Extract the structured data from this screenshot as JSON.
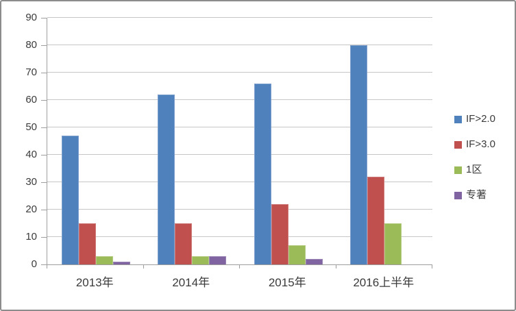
{
  "chart_data": {
    "type": "bar",
    "categories": [
      "2013年",
      "2014年",
      "2015年",
      "2016上半年"
    ],
    "series": [
      {
        "name": "IF>2.0",
        "color": "#4F81BD",
        "edge_color": "#7FA0CE",
        "values": [
          47,
          62,
          66,
          80
        ]
      },
      {
        "name": "IF>3.0",
        "color": "#C0504D",
        "edge_color": "#CF7B79",
        "values": [
          15,
          15,
          22,
          32
        ]
      },
      {
        "name": "1区",
        "color": "#9BBB59",
        "edge_color": "#B3CC82",
        "values": [
          3,
          3,
          7,
          15
        ]
      },
      {
        "name": "专著",
        "color": "#8064A2",
        "edge_color": "#9C87B7",
        "values": [
          1,
          3,
          2,
          0
        ]
      }
    ],
    "ylim": [
      0,
      90
    ],
    "ytick_step": 10,
    "ytick_labels": [
      "0",
      "10",
      "20",
      "30",
      "40",
      "50",
      "60",
      "70",
      "80",
      "90"
    ],
    "grid": true,
    "legend_position": "right",
    "colors": {
      "axis_line": "#9e9e9e",
      "gridline": "#c6c6c6",
      "text": "#3a3a3a",
      "background": "#ffffff",
      "frame_border": "#8c8c8c"
    }
  }
}
